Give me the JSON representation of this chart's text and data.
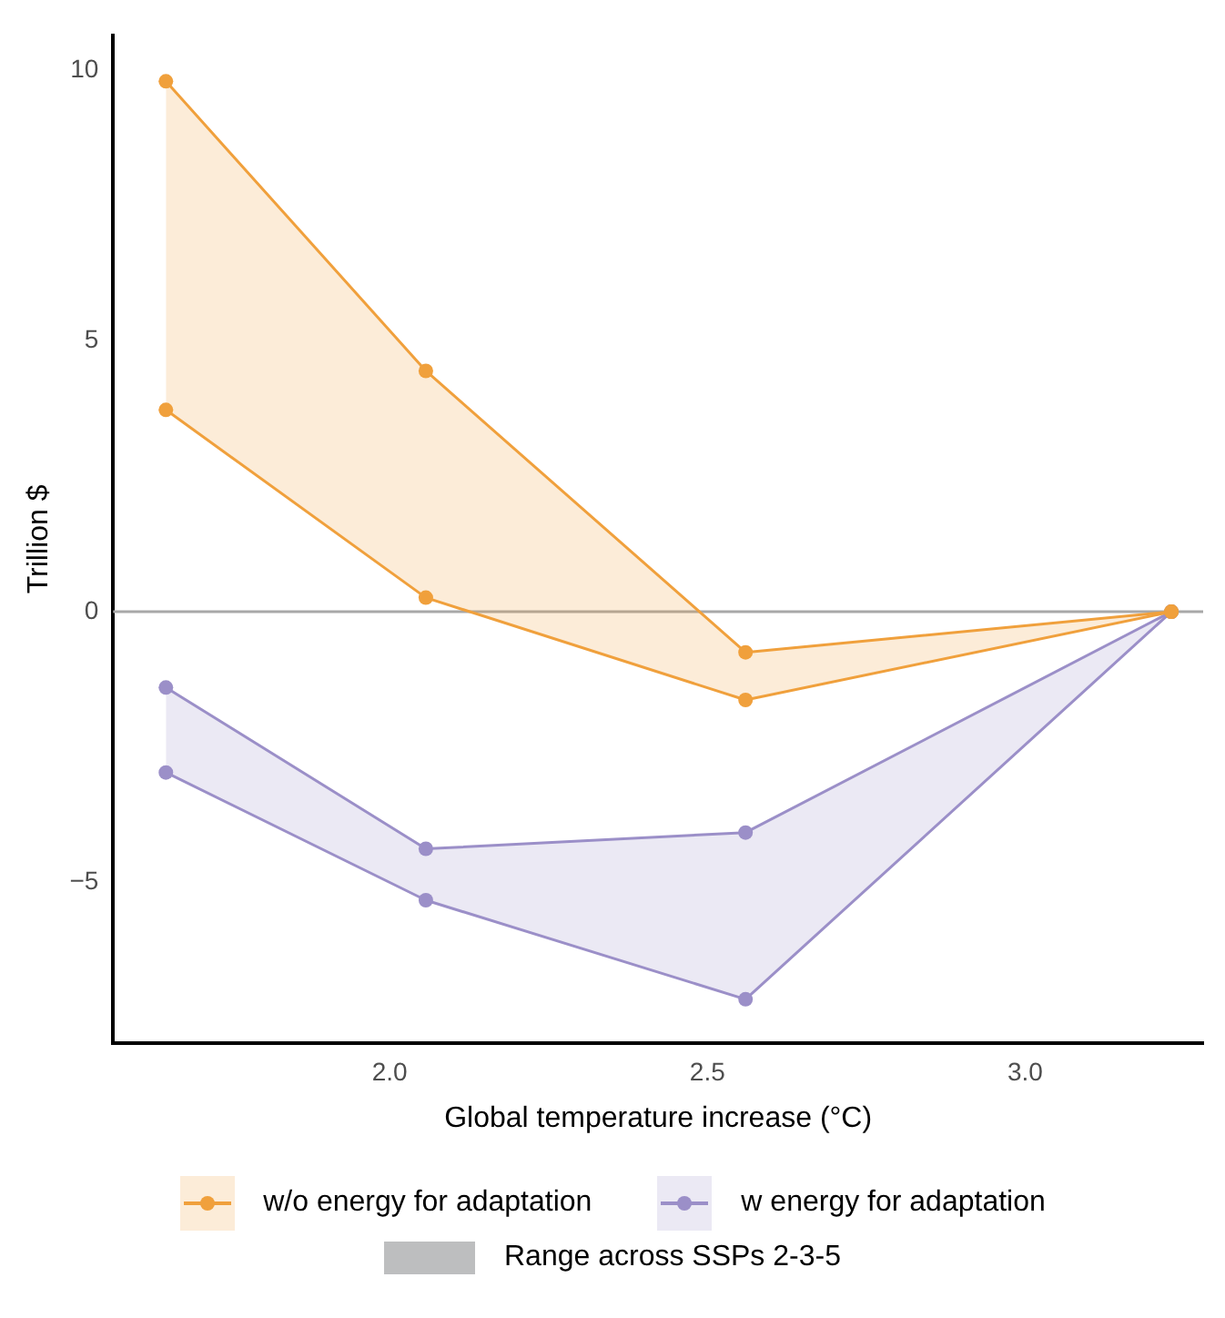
{
  "chart_data": {
    "type": "line",
    "xlabel": "Global temperature increase (°C)",
    "ylabel": "Trillion $",
    "x": [
      1.648,
      2.057,
      2.56,
      3.23
    ],
    "series": [
      {
        "name": "w/o energy for adaptation",
        "color": "#f0a03c",
        "values": [
          9.8,
          4.45,
          -0.75,
          0
        ],
        "lower": [
          3.73,
          0.26,
          -1.63,
          0
        ],
        "upper": [
          9.8,
          4.45,
          -0.75,
          0
        ]
      },
      {
        "color": "#f0a03c",
        "values": [
          3.73,
          0.26,
          -1.63,
          0
        ]
      },
      {
        "name": "w energy for adaptation",
        "color": "#9b8fc8",
        "values": [
          -1.4,
          -4.38,
          -4.08,
          0
        ],
        "lower": [
          -2.97,
          -5.33,
          -7.16,
          0
        ],
        "upper": [
          -1.4,
          -4.38,
          -4.08,
          0
        ]
      },
      {
        "color": "#9b8fc8",
        "values": [
          -2.97,
          -5.33,
          -7.16,
          0
        ]
      },
      {
        "name": "Range across SSPs 2-3-5",
        "type": "area",
        "color": "#bdbebf",
        "values": [
          null,
          null,
          null,
          null
        ]
      }
    ],
    "xlim": [
      1.565,
      3.28
    ],
    "ylim": [
      -7.97,
      10.65
    ],
    "xticks": [
      {
        "value": 2,
        "label": "2.0"
      },
      {
        "value": 2.5,
        "label": "2.5"
      },
      {
        "value": 3,
        "label": "3.0"
      }
    ],
    "yticks": [
      {
        "value": -5,
        "label": "−5"
      },
      0,
      5,
      10
    ],
    "ref_lines": [
      {
        "axis": "y",
        "value": 0,
        "color": "#a8a8a8"
      }
    ],
    "grid": false,
    "legend": "bottom",
    "marker": "circle",
    "line_style": "solid"
  }
}
